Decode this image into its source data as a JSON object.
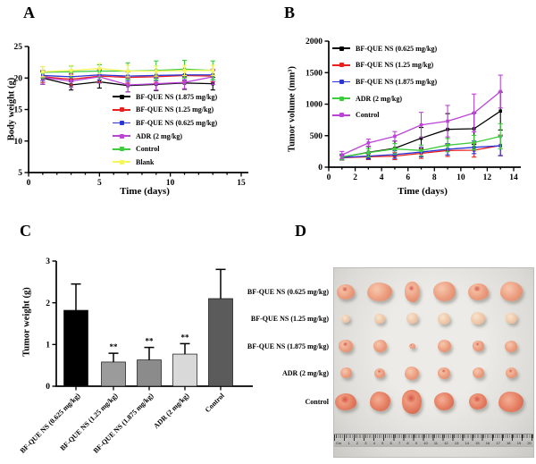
{
  "figure": {
    "panels": {
      "a": {
        "letter": "A"
      },
      "b": {
        "letter": "B"
      },
      "c": {
        "letter": "C"
      },
      "d": {
        "letter": "D"
      }
    }
  },
  "chart_data": [
    {
      "panel": "a",
      "type": "line",
      "title": "",
      "xlabel": "Time (days)",
      "ylabel": "Body weight (g)",
      "x": [
        1,
        3,
        5,
        7,
        9,
        11,
        13
      ],
      "xlim": [
        0,
        15
      ],
      "xticks": [
        0,
        5,
        10,
        15
      ],
      "ylim": [
        5,
        25
      ],
      "yticks": [
        5,
        10,
        15,
        20,
        25
      ],
      "legend_position": "inside-bottom-right",
      "grid": false,
      "series": [
        {
          "name": "BF-QUE NS (1.875 mg/kg)",
          "color": "#000000",
          "values": [
            20.0,
            18.9,
            19.4,
            18.8,
            19.0,
            19.2,
            19.1
          ],
          "err": [
            1.0,
            0.8,
            1.0,
            1.0,
            1.0,
            1.0,
            1.0
          ]
        },
        {
          "name": "BF-QUE NS (1.25 mg/kg)",
          "color": "#e8211f",
          "values": [
            20.2,
            19.8,
            20.3,
            20.1,
            20.2,
            20.4,
            20.3
          ],
          "err": [
            0.9,
            0.9,
            0.9,
            0.9,
            0.9,
            0.9,
            0.9
          ]
        },
        {
          "name": "BF-QUE NS (0.625 mg/kg)",
          "color": "#2a35d8",
          "values": [
            20.4,
            20.2,
            20.5,
            20.3,
            20.4,
            20.5,
            20.5
          ],
          "err": [
            0.8,
            0.8,
            0.8,
            0.8,
            0.8,
            0.8,
            0.8
          ]
        },
        {
          "name": "ADR (2 mg/kg)",
          "color": "#bb44d6",
          "values": [
            20.1,
            19.5,
            20.2,
            18.9,
            19.1,
            19.3,
            20.2
          ],
          "err": [
            1.1,
            1.0,
            1.0,
            1.1,
            1.0,
            1.0,
            1.2
          ]
        },
        {
          "name": "Control",
          "color": "#3ecc3e",
          "values": [
            20.9,
            21.0,
            21.1,
            21.1,
            21.2,
            21.4,
            21.2
          ],
          "err": [
            0.9,
            0.9,
            1.0,
            1.3,
            1.5,
            1.4,
            1.5
          ]
        },
        {
          "name": "Blank",
          "color": "#f5f55c",
          "values": [
            21.0,
            21.2,
            21.5,
            21.1,
            21.1,
            21.2,
            21.2
          ],
          "err": [
            0.8,
            0.8,
            0.8,
            0.9,
            0.8,
            0.8,
            0.8
          ]
        }
      ]
    },
    {
      "panel": "b",
      "type": "line",
      "title": "",
      "xlabel": "Time (days)",
      "ylabel": "Tumor volume (mm³)",
      "x": [
        1,
        3,
        5,
        7,
        9,
        11,
        13
      ],
      "xlim": [
        0,
        14
      ],
      "xticks": [
        0,
        2,
        4,
        6,
        8,
        10,
        12,
        14
      ],
      "ylim": [
        0,
        2000
      ],
      "yticks": [
        0,
        500,
        1000,
        1500,
        2000
      ],
      "legend_position": "inside-top-left",
      "grid": false,
      "series": [
        {
          "name": "BF-QUE NS (0.625 mg/kg)",
          "color": "#000000",
          "values": [
            160,
            235,
            300,
            460,
            600,
            610,
            890
          ],
          "err": [
            45,
            95,
            115,
            170,
            250,
            250,
            300
          ]
        },
        {
          "name": "BF-QUE NS (1.25 mg/kg)",
          "color": "#e8211f",
          "values": [
            150,
            165,
            175,
            220,
            265,
            270,
            345
          ],
          "err": [
            30,
            45,
            55,
            80,
            95,
            110,
            165
          ]
        },
        {
          "name": "BF-QUE NS (1.875 mg/kg)",
          "color": "#2a35d8",
          "values": [
            155,
            175,
            200,
            240,
            285,
            315,
            340
          ],
          "err": [
            35,
            45,
            60,
            75,
            90,
            100,
            155
          ]
        },
        {
          "name": "ADR (2 mg/kg)",
          "color": "#3ecc3e",
          "values": [
            165,
            230,
            290,
            265,
            350,
            390,
            490
          ],
          "err": [
            45,
            65,
            85,
            85,
            105,
            115,
            200
          ]
        },
        {
          "name": "Control",
          "color": "#bb44d6",
          "values": [
            195,
            385,
            490,
            670,
            730,
            860,
            1200
          ],
          "err": [
            55,
            60,
            75,
            200,
            250,
            300,
            260
          ]
        }
      ]
    },
    {
      "panel": "c",
      "type": "bar",
      "title": "",
      "xlabel": "",
      "ylabel": "Tumor weight (g)",
      "categories": [
        "BF-QUE NS (0.625 mg/kg)",
        "BF-QUE NS (1.25 mg/kg)",
        "BF-QUE NS (1.875 mg/kg)",
        "ADR (2 mg/kg)",
        "Control"
      ],
      "values": [
        1.82,
        0.58,
        0.63,
        0.77,
        2.1
      ],
      "errors": [
        0.63,
        0.21,
        0.3,
        0.25,
        0.7
      ],
      "bar_colors": [
        "#000000",
        "#9b9b9b",
        "#8b8b8b",
        "#d9d9d9",
        "#5b5b5b"
      ],
      "significance": [
        "",
        "**",
        "**",
        "**",
        ""
      ],
      "ylim": [
        0,
        3
      ],
      "yticks": [
        0,
        1,
        2,
        3
      ],
      "grid": false
    }
  ],
  "panel_d": {
    "rows": [
      {
        "label": "BF-QUE NS (0.625 mg/kg)",
        "tone": "mid",
        "sizes": [
          [
            20,
            17
          ],
          [
            28,
            21
          ],
          [
            17,
            23
          ],
          [
            25,
            22
          ],
          [
            23,
            19
          ],
          [
            25,
            22
          ]
        ]
      },
      {
        "label": "BF-QUE NS (1.25 mg/kg)",
        "tone": "pale",
        "sizes": [
          [
            10,
            9
          ],
          [
            12,
            11
          ],
          [
            13,
            12
          ],
          [
            14,
            13
          ],
          [
            16,
            14
          ],
          [
            13,
            12
          ]
        ]
      },
      {
        "label": "BF-QUE NS (1.875 mg/kg)",
        "tone": "mid",
        "sizes": [
          [
            16,
            14
          ],
          [
            15,
            14
          ],
          [
            7,
            6
          ],
          [
            15,
            14
          ],
          [
            13,
            12
          ],
          [
            14,
            13
          ]
        ]
      },
      {
        "label": "ADR (2 mg/kg)",
        "tone": "mid",
        "sizes": [
          [
            13,
            12
          ],
          [
            12,
            11
          ],
          [
            16,
            15
          ],
          [
            14,
            13
          ],
          [
            13,
            12
          ],
          [
            13,
            12
          ]
        ]
      },
      {
        "label": "Control",
        "tone": "red",
        "sizes": [
          [
            24,
            19
          ],
          [
            23,
            22
          ],
          [
            22,
            27
          ],
          [
            22,
            20
          ],
          [
            20,
            18
          ],
          [
            28,
            23
          ]
        ]
      }
    ],
    "ruler": {
      "label": "Cm",
      "numbers": [
        "1",
        "2",
        "3",
        "4",
        "5",
        "6",
        "7",
        "8",
        "9",
        "10",
        "11",
        "12",
        "13",
        "14",
        "15",
        "16",
        "17",
        "18",
        "19",
        "20"
      ]
    }
  }
}
